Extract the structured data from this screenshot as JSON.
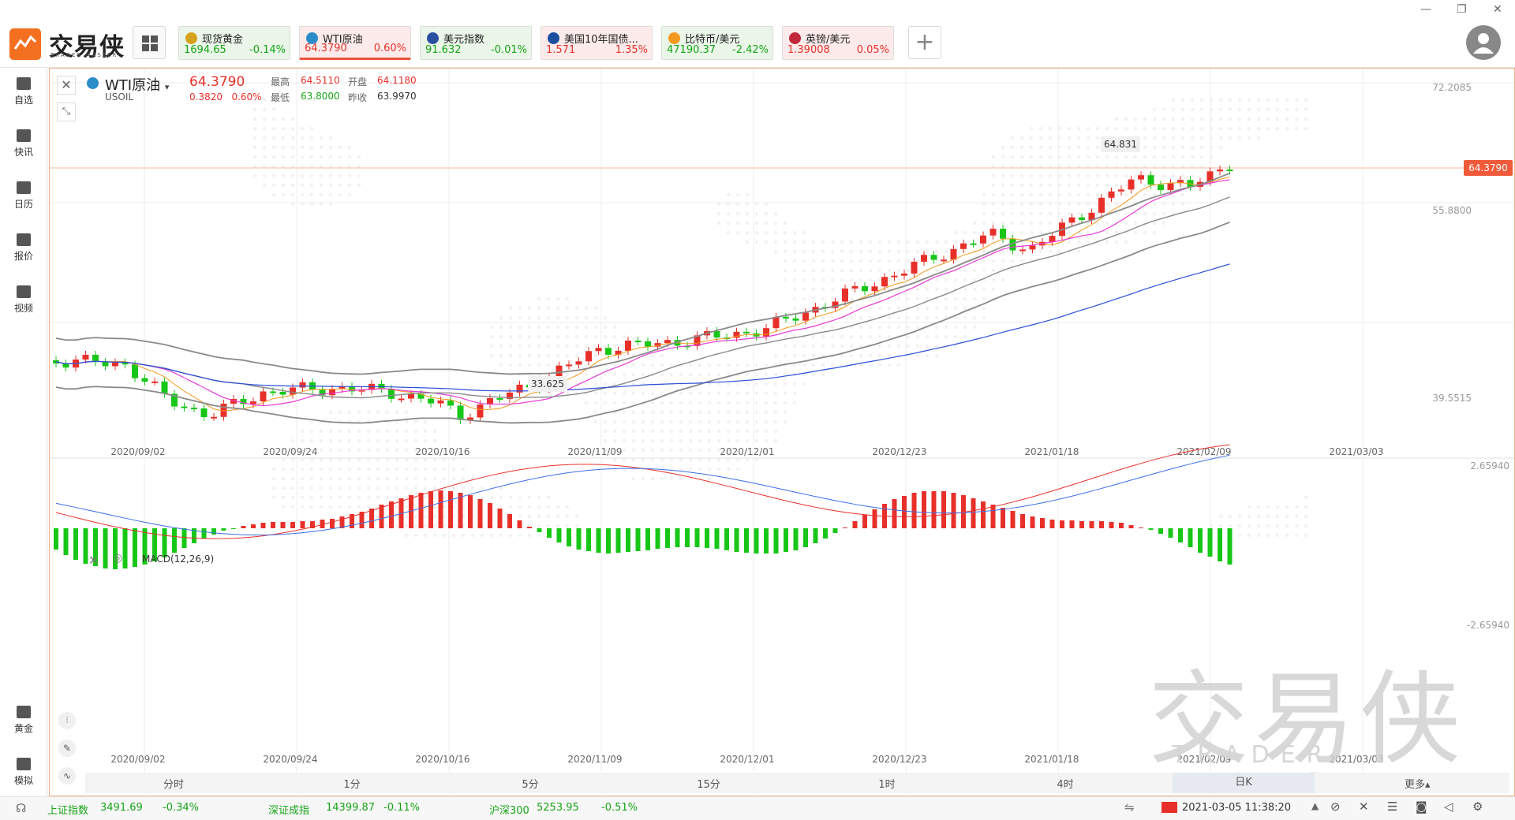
{
  "app": {
    "title": "交易侠",
    "subtitle": "TRADER MASTER"
  },
  "watchlist": [
    {
      "name": "现货黄金",
      "price": "1694.65",
      "change": "-0.14%",
      "trend": "down",
      "icon_color": "#d6a21e",
      "selected": false
    },
    {
      "name": "WTI原油",
      "price": "64.3790",
      "change": "0.60%",
      "trend": "up",
      "icon_color": "#2a8cc9",
      "selected": true
    },
    {
      "name": "美元指数",
      "price": "91.632",
      "change": "-0.01%",
      "trend": "down",
      "icon_color": "#2b4fa0",
      "selected": false
    },
    {
      "name": "美国10年国债...",
      "price": "1.571",
      "change": "1.35%",
      "trend": "up",
      "icon_color": "#1d4fa0",
      "selected": false
    },
    {
      "name": "比特币/美元",
      "price": "47190.37",
      "change": "-2.42%",
      "trend": "down",
      "icon_color": "#f39a1e",
      "selected": false
    },
    {
      "name": "英镑/美元",
      "price": "1.39008",
      "change": "0.05%",
      "trend": "up",
      "icon_color": "#c0283a",
      "selected": false
    }
  ],
  "sidebar": {
    "items": [
      {
        "label": "自选",
        "icon": "add-watchlist-icon"
      },
      {
        "label": "快讯",
        "icon": "news-icon"
      },
      {
        "label": "日历",
        "icon": "calendar-icon"
      },
      {
        "label": "报价",
        "icon": "quote-chart-icon"
      },
      {
        "label": "视频",
        "icon": "video-icon"
      }
    ],
    "bottom_items": [
      {
        "label": "黄金",
        "icon": "gold-calculator-icon"
      },
      {
        "label": "模拟",
        "icon": "simulate-icon"
      }
    ]
  },
  "instrument": {
    "name": "WTI原油",
    "code": "USOIL",
    "price": "64.3790",
    "change": "0.3820",
    "change_pct": "0.60%",
    "high_label": "最高",
    "high": "64.5110",
    "open_label": "开盘",
    "open": "64.1180",
    "low_label": "最低",
    "low": "63.8000",
    "prev_label": "昨收",
    "prev": "63.9970"
  },
  "price_axis": {
    "labels": [
      "72.2085",
      "55.8800",
      "39.5515"
    ],
    "current": "64.3790"
  },
  "price_annotations": {
    "max": "64.831",
    "min": "33.625"
  },
  "date_axis": [
    "2020/09/02",
    "2020/09/24",
    "2020/10/16",
    "2020/11/09",
    "2020/12/01",
    "2020/12/23",
    "2021/01/18",
    "2021/02/09",
    "2021/03/03"
  ],
  "macd": {
    "label": "MACD(12,26,9)",
    "axis_top": "2.65940",
    "axis_bottom": "-2.65940"
  },
  "periods": [
    {
      "label": "分时"
    },
    {
      "label": "1分"
    },
    {
      "label": "5分"
    },
    {
      "label": "15分"
    },
    {
      "label": "1时"
    },
    {
      "label": "4时"
    },
    {
      "label": "日K",
      "active": true
    }
  ],
  "more_label": "更多▴",
  "watermark": {
    "big": "交易侠",
    "small": "TRADER MASTER"
  },
  "status": {
    "indices": [
      {
        "name": "上证指数",
        "value": "3491.69",
        "change": "-0.34%"
      },
      {
        "name": "深证成指",
        "value": "14399.87",
        "change": "-0.11%"
      },
      {
        "name": "沪深300",
        "value": "5253.95",
        "change": "-0.51%"
      }
    ],
    "time": "2021-03-05 11:38:20"
  },
  "colors": {
    "up": "#e8302a",
    "down": "#17c717",
    "accent": "#f37021",
    "ma_blue": "#2b4fd8",
    "ma_magenta": "#e83ad8",
    "ma_orange": "#f39a1e",
    "boll": "#8a8a8a"
  }
}
